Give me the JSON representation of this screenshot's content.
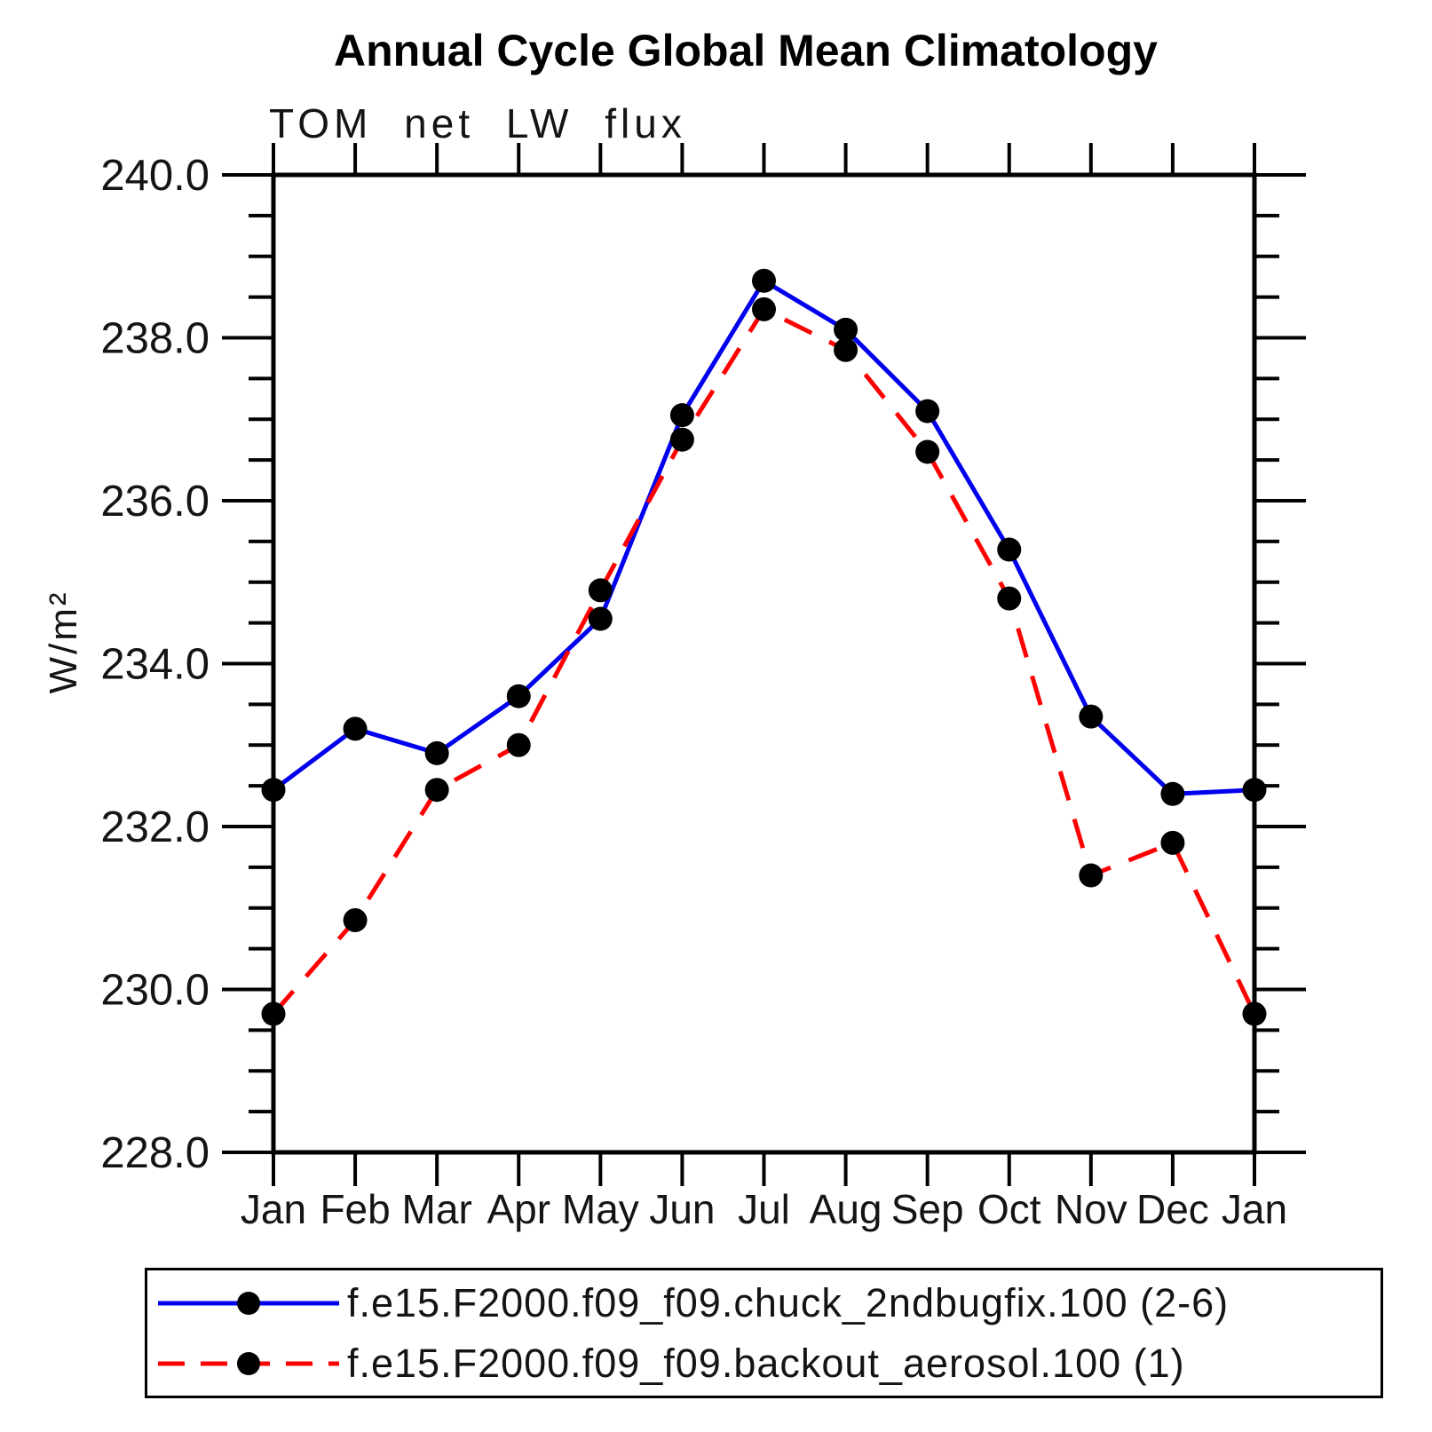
{
  "chart_data": {
    "type": "line",
    "title": "Annual Cycle Global Mean Climatology",
    "subtitle": "TOM net LW flux",
    "ylabel": "W/m²",
    "xlabel": "",
    "categories": [
      "Jan",
      "Feb",
      "Mar",
      "Apr",
      "May",
      "Jun",
      "Jul",
      "Aug",
      "Sep",
      "Oct",
      "Nov",
      "Dec",
      "Jan"
    ],
    "ylim": [
      228.0,
      240.0
    ],
    "ytick_interval": 2.0,
    "yminor_interval": 0.5,
    "ytick_labels": [
      "228.0",
      "230.0",
      "232.0",
      "234.0",
      "236.0",
      "238.0",
      "240.0"
    ],
    "grid": false,
    "legend_position": "bottom",
    "series": [
      {
        "name": "f.e15.F2000.f09_f09.chuck_2ndbugfix.100 (2-6)",
        "color": "#0000ee",
        "style": "solid",
        "marker": "circle",
        "marker_color": "#000000",
        "values": [
          232.45,
          233.2,
          232.9,
          233.6,
          234.55,
          237.05,
          238.7,
          238.1,
          237.1,
          235.4,
          233.35,
          232.4,
          232.45
        ]
      },
      {
        "name": "f.e15.F2000.f09_f09.backout_aerosol.100 (1)",
        "color": "#ff0000",
        "style": "dashed",
        "marker": "circle",
        "marker_color": "#000000",
        "values": [
          229.7,
          230.85,
          232.45,
          233.0,
          234.9,
          236.75,
          238.35,
          237.85,
          236.6,
          234.8,
          231.4,
          231.8,
          229.7
        ]
      }
    ],
    "colors": {
      "axis": "#000000",
      "background": "#ffffff",
      "series1": "#0000ee",
      "series2": "#ff0000"
    }
  }
}
